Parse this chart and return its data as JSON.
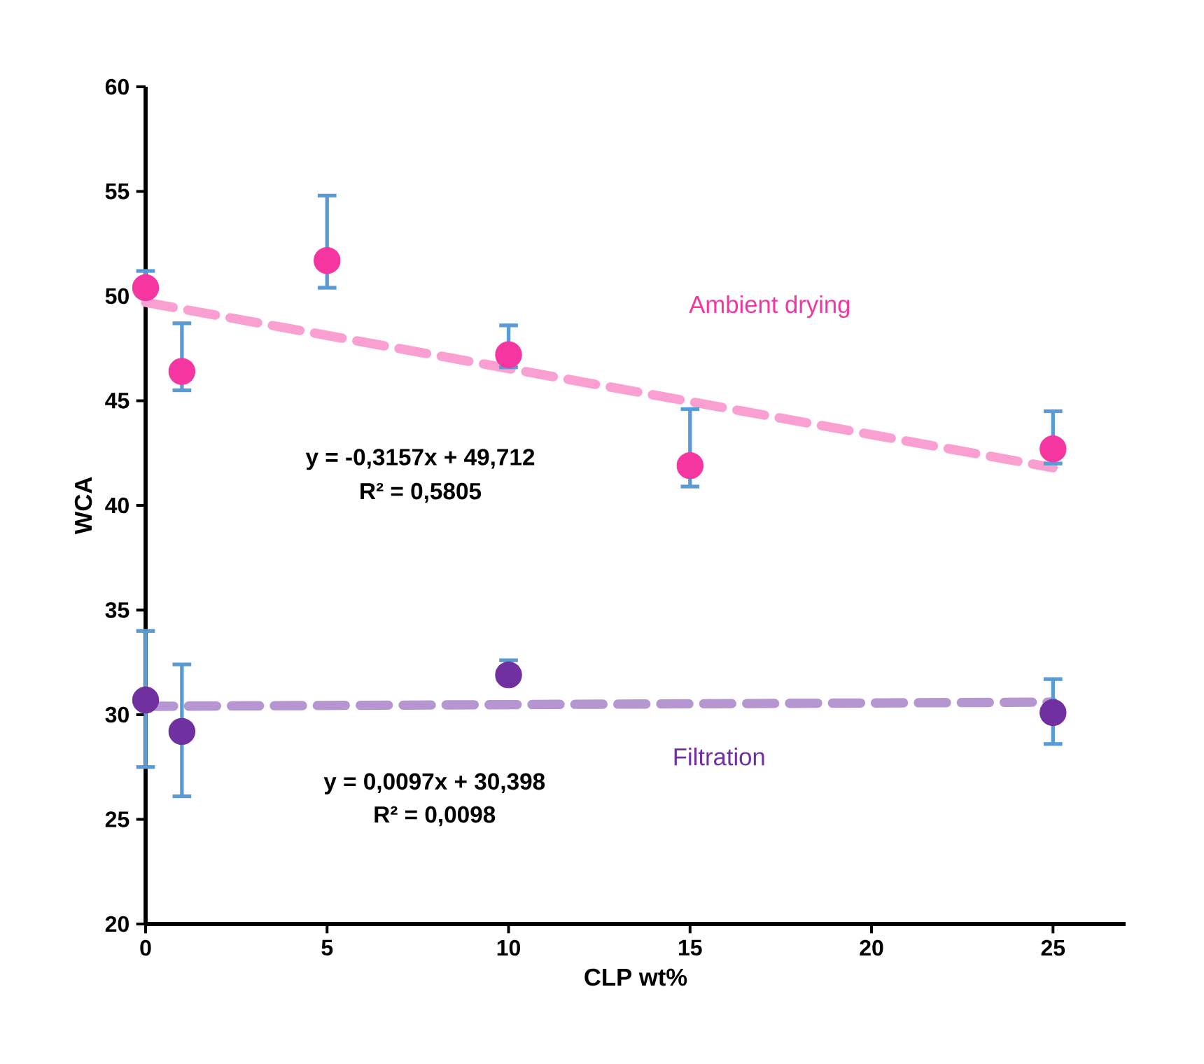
{
  "chart_data": {
    "type": "scatter",
    "xlabel": "CLP wt%",
    "ylabel": "WCA",
    "xlim": [
      0,
      27
    ],
    "ylim": [
      20,
      60
    ],
    "xticks": [
      0,
      5,
      10,
      15,
      20,
      25
    ],
    "yticks": [
      20,
      25,
      30,
      35,
      40,
      45,
      50,
      55,
      60
    ],
    "grid": false,
    "marker": "circle",
    "series": [
      {
        "name": "Ambient drying",
        "color": "#f535a0",
        "x": [
          0,
          1,
          5,
          10,
          15,
          25
        ],
        "values": [
          50.4,
          46.4,
          51.7,
          47.2,
          41.9,
          42.7
        ],
        "errors": [
          [
            50.4,
            51.2
          ],
          [
            45.5,
            48.7
          ],
          [
            50.4,
            54.8
          ],
          [
            46.6,
            48.6
          ],
          [
            40.9,
            44.6
          ],
          [
            42.0,
            44.5
          ]
        ]
      },
      {
        "name": "Filtration",
        "color": "#7030a0",
        "x": [
          0,
          1,
          10,
          25
        ],
        "values": [
          30.7,
          29.2,
          31.9,
          30.1
        ],
        "errors": [
          [
            27.5,
            34.0
          ],
          [
            26.1,
            32.4
          ],
          [
            31.9,
            32.6
          ],
          [
            28.6,
            31.7
          ]
        ]
      },
      {
        "type": "line",
        "color": "#f99fd1",
        "line_style": "dashed",
        "marker": "none",
        "x": [
          0,
          25
        ],
        "values": [
          49.7,
          41.8
        ]
      },
      {
        "type": "line",
        "color": "#b596d0",
        "line_style": "dashed",
        "marker": "none",
        "x": [
          0,
          25
        ],
        "values": [
          30.4,
          30.6
        ]
      }
    ],
    "annotations": [
      "y = -0,3157x + 49,712",
      "R² = 0,5805",
      "y = 0,0097x + 30,398",
      "R² = 0,0098"
    ]
  }
}
